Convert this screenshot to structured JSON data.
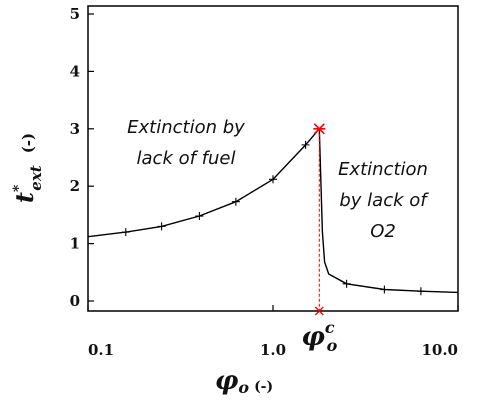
{
  "chart_data": {
    "type": "line",
    "x_scale": "log",
    "xlim": [
      0.1,
      10.0
    ],
    "ylim": [
      0,
      5
    ],
    "x_ticks": [
      "0.1",
      "1.0",
      "10.0"
    ],
    "y_ticks": [
      "0",
      "1",
      "2",
      "3",
      "4",
      "5"
    ],
    "xlabel_symbol": "φ",
    "xlabel_sub": "o",
    "xlabel_unit": "(-)",
    "ylabel_symbol": "t",
    "ylabel_sup": "*",
    "ylabel_sub": "ext",
    "ylabel_unit": "(-)",
    "series": [
      {
        "x": [
          0.1,
          0.16,
          0.25,
          0.4,
          0.63,
          1.0,
          1.5,
          1.78,
          1.85,
          1.9,
          2.0,
          2.5,
          4.0,
          6.3,
          10.0
        ],
        "y": [
          1.12,
          1.2,
          1.3,
          1.48,
          1.73,
          2.12,
          2.72,
          3.0,
          1.2,
          0.68,
          0.47,
          0.3,
          0.2,
          0.17,
          0.15
        ],
        "markers_x": [
          0.16,
          0.25,
          0.4,
          0.63,
          1.0,
          1.5,
          2.5,
          4.0,
          6.3
        ],
        "markers_y": [
          1.2,
          1.3,
          1.48,
          1.73,
          2.12,
          2.72,
          0.3,
          0.2,
          0.17
        ],
        "color": "#000000"
      }
    ],
    "critical_point": {
      "x": 1.78,
      "y": 3.0,
      "color": "#ff0000"
    },
    "critical_label": {
      "symbol": "φ",
      "sub": "o",
      "sup": "c",
      "color": "#ff0000"
    },
    "annotations": [
      {
        "lines": [
          "Extinction by",
          "lack of fuel"
        ]
      },
      {
        "lines": [
          "Extinction",
          "by lack of",
          "O2"
        ]
      }
    ]
  }
}
